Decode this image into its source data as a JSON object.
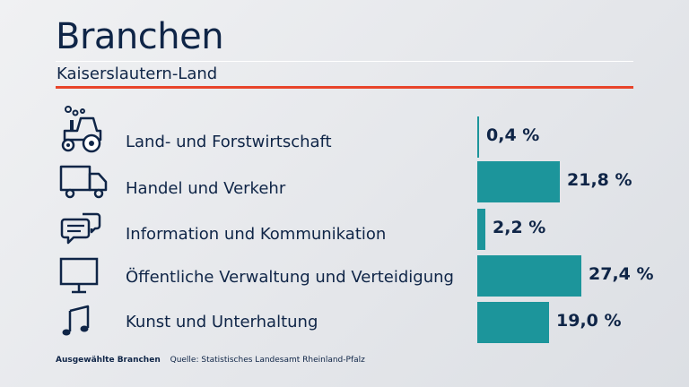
{
  "header": {
    "title": "Branchen",
    "subtitle": "Kaiserslautern-Land"
  },
  "chart_data": {
    "type": "bar",
    "orientation": "horizontal",
    "title": "Branchen",
    "subtitle": "Kaiserslautern-Land",
    "categories": [
      "Land- und Forstwirtschaft",
      "Handel und Verkehr",
      "Information und Kommunikation",
      "Öffentliche Verwaltung und Verteidigung",
      "Kunst und Unterhaltung"
    ],
    "values": [
      0.4,
      21.8,
      2.2,
      27.4,
      19.0
    ],
    "value_labels": [
      "0,4 %",
      "21,8 %",
      "2,2 %",
      "27,4 %",
      "19,0 %"
    ],
    "icons": [
      "tractor-icon",
      "truck-icon",
      "chat-bubbles-icon",
      "monitor-icon",
      "music-note-icon"
    ],
    "xlim": [
      0,
      27.4
    ],
    "bar_color": "#1c959b",
    "grid": false,
    "legend": "none"
  },
  "footer": {
    "label": "Ausgewählte Branchen",
    "source": "Quelle: Statistisches Landesamt Rheinland-Pfalz"
  },
  "colors": {
    "accent_red": "#e8442a",
    "text": "#0f2547",
    "bar": "#1c959b"
  }
}
